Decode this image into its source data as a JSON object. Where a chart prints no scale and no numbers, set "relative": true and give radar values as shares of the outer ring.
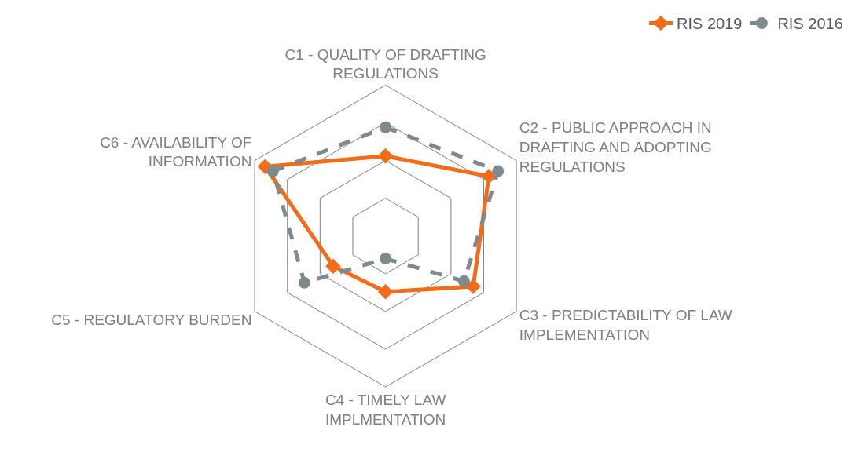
{
  "chart_data": {
    "type": "radar",
    "relative": true,
    "grid": true,
    "legend": "top right",
    "categories": [
      "C1 - QUALITY OF DRAFTING\nREGULATIONS",
      "C2 - PUBLIC APPROACH IN\nDRAFTING AND ADOPTING\nREGULATIONS",
      "C3 - PREDICTABILITY OF LAW\nIMPLEMENTATION",
      "C4 - TIMELY LAW\nIMPLMENTATION",
      "C5 - REGULATORY BURDEN",
      "C6 - AVAILABILITY OF\nINFORMATION"
    ],
    "series": [
      {
        "name": "RIS 2019",
        "color": "#f26c1a",
        "marker": "diamond",
        "line_style": "solid",
        "values": [
          0.53,
          0.79,
          0.67,
          0.37,
          0.4,
          0.92
        ]
      },
      {
        "name": "RIS 2016",
        "color": "#7f8a8f",
        "marker": "circle",
        "line_style": "dashed",
        "values": [
          0.72,
          0.86,
          0.6,
          0.15,
          0.62,
          0.86
        ]
      }
    ]
  }
}
